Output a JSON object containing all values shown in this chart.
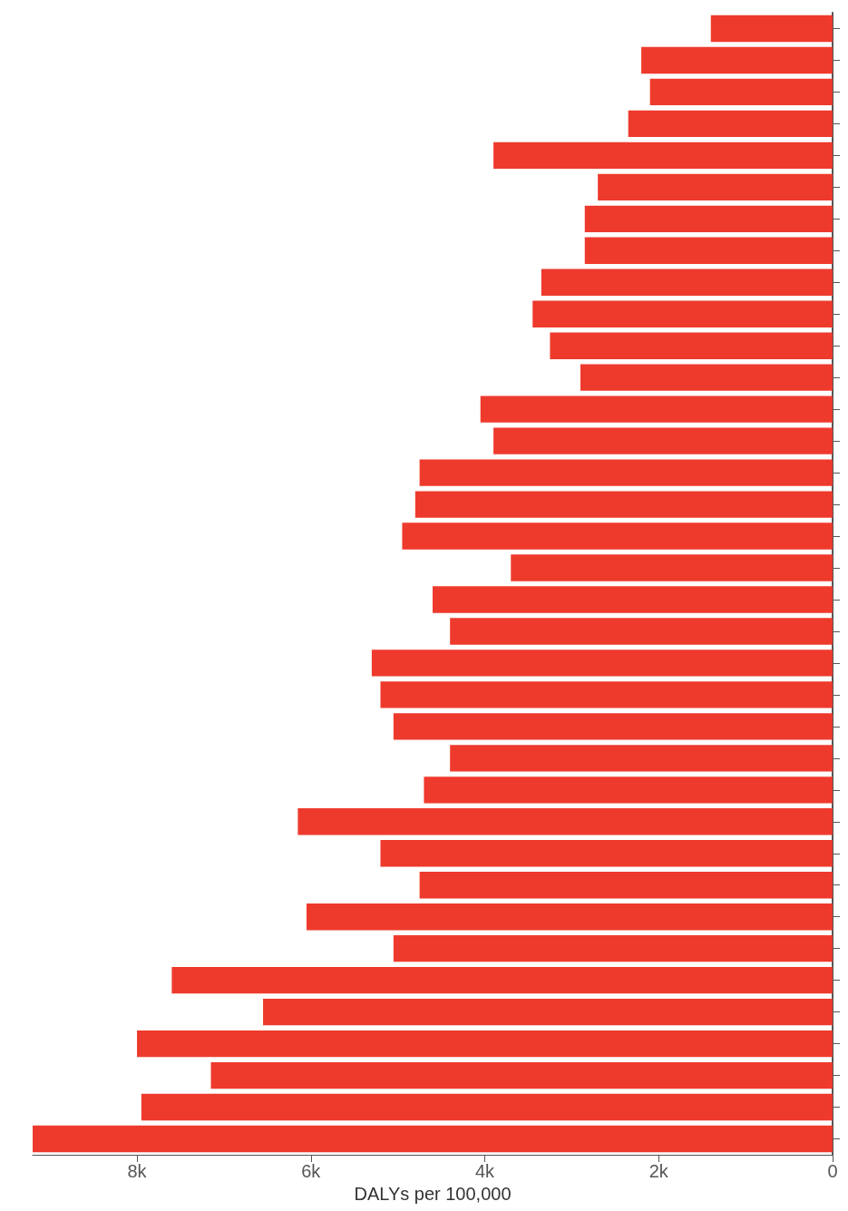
{
  "chart_data": {
    "type": "bar",
    "orientation": "horizontal",
    "xlabel": "DALYs per 100,000",
    "categories": [
      null,
      null,
      null,
      null,
      null,
      null,
      null,
      null,
      null,
      null,
      null,
      null,
      null,
      null,
      null,
      null,
      null,
      null,
      null,
      null,
      null,
      null,
      null,
      null,
      null,
      null,
      null,
      null,
      null,
      null,
      null,
      null,
      null,
      null,
      null,
      null
    ],
    "values": [
      1400,
      2200,
      2100,
      2350,
      3900,
      2700,
      2850,
      2850,
      3350,
      3450,
      3250,
      2900,
      4050,
      3900,
      4750,
      4800,
      4950,
      3700,
      4600,
      4400,
      5300,
      5200,
      5050,
      4400,
      4700,
      6150,
      5200,
      4750,
      6050,
      5050,
      7600,
      6550,
      8000,
      7150,
      7950,
      9200
    ],
    "color": "#ee3a2c",
    "xlim": [
      9200,
      0
    ],
    "xticks": [
      0,
      {
        "value": 2000,
        "label": "2k"
      },
      {
        "value": 4000,
        "label": "4k"
      },
      {
        "value": 6000,
        "label": "6k"
      },
      {
        "value": 8000,
        "label": "8k"
      }
    ],
    "tick_labels": "x",
    "grid": false
  }
}
